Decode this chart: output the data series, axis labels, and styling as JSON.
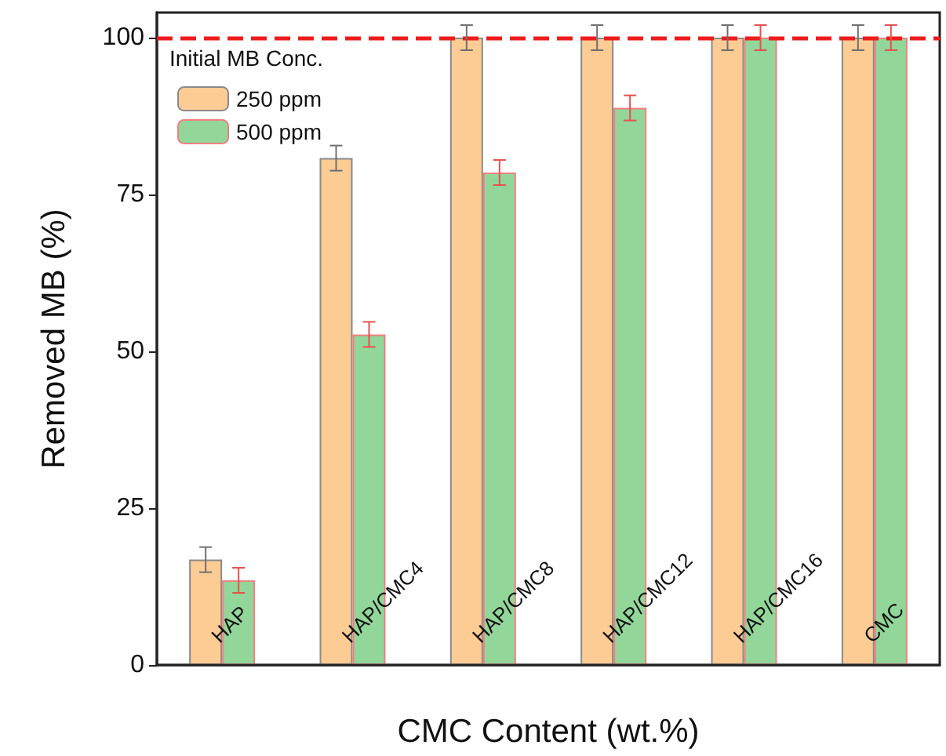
{
  "chart_data": {
    "type": "bar",
    "xlabel": "CMC Content (wt.%)",
    "ylabel": "Removed MB (%)",
    "legend_title": "Initial MB Conc.",
    "categories": [
      "HAP",
      "HAP/CMC4",
      "HAP/CMC8",
      "HAP/CMC12",
      "HAP/CMC16",
      "CMC"
    ],
    "series": [
      {
        "name": "250 ppm",
        "color": "#fdcb94",
        "values": [
          16.8,
          80.8,
          100,
          100,
          100,
          100
        ],
        "errors": [
          2,
          2,
          2,
          2,
          2,
          2
        ]
      },
      {
        "name": "500 ppm",
        "color": "#93d699",
        "values": [
          13.5,
          52.7,
          78.5,
          88.8,
          100,
          100
        ],
        "errors": [
          2,
          2,
          2,
          2,
          2,
          2
        ]
      }
    ],
    "ylim": [
      0,
      104
    ],
    "yticks": [
      0,
      25,
      50,
      75,
      100
    ],
    "grid": false,
    "legend": "top left",
    "ref_lines": [
      {
        "axis": "y",
        "value": 100,
        "color": "#ee1c1c",
        "line_style": "dashed"
      }
    ]
  }
}
